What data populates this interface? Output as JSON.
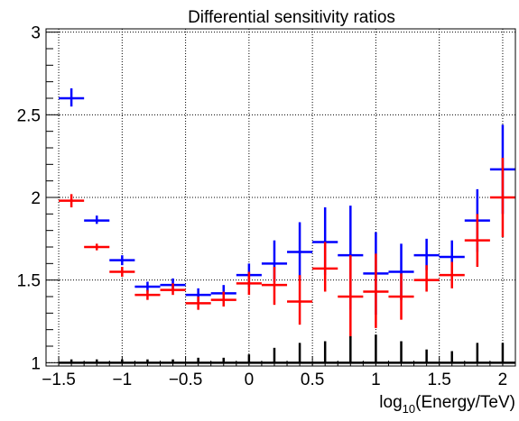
{
  "chart_data": {
    "type": "scatter",
    "title": "Differential sensitivity ratios",
    "xlabel_parts": {
      "pre": "log",
      "sub": "10",
      "post": "(Energy/TeV)"
    },
    "ylabel": "",
    "xlim": [
      -1.6,
      2.1
    ],
    "ylim": [
      0.98,
      3.02
    ],
    "grid": true,
    "legend": "none",
    "x_ticks": [
      {
        "value": -1.5,
        "label": "−1.5"
      },
      {
        "value": -1.0,
        "label": "−1"
      },
      {
        "value": -0.5,
        "label": "−0.5"
      },
      {
        "value": 0.0,
        "label": "0"
      },
      {
        "value": 0.5,
        "label": "0.5"
      },
      {
        "value": 1.0,
        "label": "1"
      },
      {
        "value": 1.5,
        "label": "1.5"
      },
      {
        "value": 2.0,
        "label": "2"
      }
    ],
    "y_ticks": [
      {
        "value": 1.0,
        "label": "1"
      },
      {
        "value": 1.5,
        "label": "1.5"
      },
      {
        "value": 2.0,
        "label": "2"
      },
      {
        "value": 2.5,
        "label": "2.5"
      },
      {
        "value": 3.0,
        "label": "3"
      }
    ],
    "bin_half_width": 0.1,
    "series": [
      {
        "color": "#0000ff",
        "points": [
          {
            "x": -1.4,
            "y": 2.6,
            "lo": 2.55,
            "hi": 2.66
          },
          {
            "x": -1.2,
            "y": 1.86,
            "lo": 1.84,
            "hi": 1.89
          },
          {
            "x": -1.0,
            "y": 1.62,
            "lo": 1.59,
            "hi": 1.65
          },
          {
            "x": -0.8,
            "y": 1.46,
            "lo": 1.43,
            "hi": 1.49
          },
          {
            "x": -0.6,
            "y": 1.47,
            "lo": 1.44,
            "hi": 1.51
          },
          {
            "x": -0.4,
            "y": 1.41,
            "lo": 1.37,
            "hi": 1.45
          },
          {
            "x": -0.2,
            "y": 1.42,
            "lo": 1.38,
            "hi": 1.47
          },
          {
            "x": 0.0,
            "y": 1.53,
            "lo": 1.46,
            "hi": 1.6
          },
          {
            "x": 0.2,
            "y": 1.6,
            "lo": 1.49,
            "hi": 1.74
          },
          {
            "x": 0.4,
            "y": 1.67,
            "lo": 1.5,
            "hi": 1.85
          },
          {
            "x": 0.6,
            "y": 1.73,
            "lo": 1.53,
            "hi": 1.94
          },
          {
            "x": 0.8,
            "y": 1.65,
            "lo": 1.32,
            "hi": 1.95
          },
          {
            "x": 1.0,
            "y": 1.54,
            "lo": 1.29,
            "hi": 1.79
          },
          {
            "x": 1.2,
            "y": 1.55,
            "lo": 1.38,
            "hi": 1.72
          },
          {
            "x": 1.4,
            "y": 1.65,
            "lo": 1.56,
            "hi": 1.75
          },
          {
            "x": 1.6,
            "y": 1.64,
            "lo": 1.55,
            "hi": 1.74
          },
          {
            "x": 1.8,
            "y": 1.86,
            "lo": 1.67,
            "hi": 2.05
          },
          {
            "x": 2.0,
            "y": 2.17,
            "lo": 1.9,
            "hi": 2.44
          }
        ]
      },
      {
        "color": "#ff0000",
        "points": [
          {
            "x": -1.4,
            "y": 1.98,
            "lo": 1.94,
            "hi": 2.02
          },
          {
            "x": -1.2,
            "y": 1.7,
            "lo": 1.68,
            "hi": 1.72
          },
          {
            "x": -1.0,
            "y": 1.55,
            "lo": 1.52,
            "hi": 1.58
          },
          {
            "x": -0.8,
            "y": 1.41,
            "lo": 1.38,
            "hi": 1.44
          },
          {
            "x": -0.6,
            "y": 1.44,
            "lo": 1.41,
            "hi": 1.48
          },
          {
            "x": -0.4,
            "y": 1.36,
            "lo": 1.32,
            "hi": 1.4
          },
          {
            "x": -0.2,
            "y": 1.38,
            "lo": 1.34,
            "hi": 1.43
          },
          {
            "x": 0.0,
            "y": 1.48,
            "lo": 1.41,
            "hi": 1.55
          },
          {
            "x": 0.2,
            "y": 1.47,
            "lo": 1.35,
            "hi": 1.58
          },
          {
            "x": 0.4,
            "y": 1.37,
            "lo": 1.23,
            "hi": 1.53
          },
          {
            "x": 0.6,
            "y": 1.57,
            "lo": 1.43,
            "hi": 1.73
          },
          {
            "x": 0.8,
            "y": 1.4,
            "lo": 1.15,
            "hi": 1.65
          },
          {
            "x": 1.0,
            "y": 1.43,
            "lo": 1.21,
            "hi": 1.66
          },
          {
            "x": 1.2,
            "y": 1.4,
            "lo": 1.26,
            "hi": 1.54
          },
          {
            "x": 1.4,
            "y": 1.5,
            "lo": 1.43,
            "hi": 1.59
          },
          {
            "x": 1.6,
            "y": 1.53,
            "lo": 1.45,
            "hi": 1.61
          },
          {
            "x": 1.8,
            "y": 1.74,
            "lo": 1.58,
            "hi": 1.9
          },
          {
            "x": 2.0,
            "y": 2.0,
            "lo": 1.76,
            "hi": 2.24
          }
        ]
      },
      {
        "color": "#000000",
        "points": [
          {
            "x": -1.4,
            "y": 1.0,
            "lo": 1.0,
            "hi": 1.02
          },
          {
            "x": -1.2,
            "y": 1.0,
            "lo": 1.0,
            "hi": 1.02
          },
          {
            "x": -1.0,
            "y": 1.0,
            "lo": 1.0,
            "hi": 1.02
          },
          {
            "x": -0.8,
            "y": 1.0,
            "lo": 1.0,
            "hi": 1.02
          },
          {
            "x": -0.6,
            "y": 1.0,
            "lo": 1.0,
            "hi": 1.02
          },
          {
            "x": -0.4,
            "y": 1.0,
            "lo": 1.0,
            "hi": 1.03
          },
          {
            "x": -0.2,
            "y": 1.0,
            "lo": 1.0,
            "hi": 1.03
          },
          {
            "x": 0.0,
            "y": 1.0,
            "lo": 1.0,
            "hi": 1.05
          },
          {
            "x": 0.2,
            "y": 1.0,
            "lo": 1.0,
            "hi": 1.09
          },
          {
            "x": 0.4,
            "y": 1.0,
            "lo": 1.0,
            "hi": 1.12
          },
          {
            "x": 0.6,
            "y": 1.0,
            "lo": 1.0,
            "hi": 1.13
          },
          {
            "x": 0.8,
            "y": 1.0,
            "lo": 1.0,
            "hi": 1.16
          },
          {
            "x": 1.0,
            "y": 1.0,
            "lo": 1.0,
            "hi": 1.17
          },
          {
            "x": 1.2,
            "y": 1.0,
            "lo": 1.0,
            "hi": 1.13
          },
          {
            "x": 1.4,
            "y": 1.0,
            "lo": 1.0,
            "hi": 1.08
          },
          {
            "x": 1.6,
            "y": 1.0,
            "lo": 1.0,
            "hi": 1.07
          },
          {
            "x": 1.8,
            "y": 1.0,
            "lo": 1.0,
            "hi": 1.12
          },
          {
            "x": 2.0,
            "y": 1.0,
            "lo": 1.0,
            "hi": 1.12
          }
        ]
      }
    ]
  }
}
